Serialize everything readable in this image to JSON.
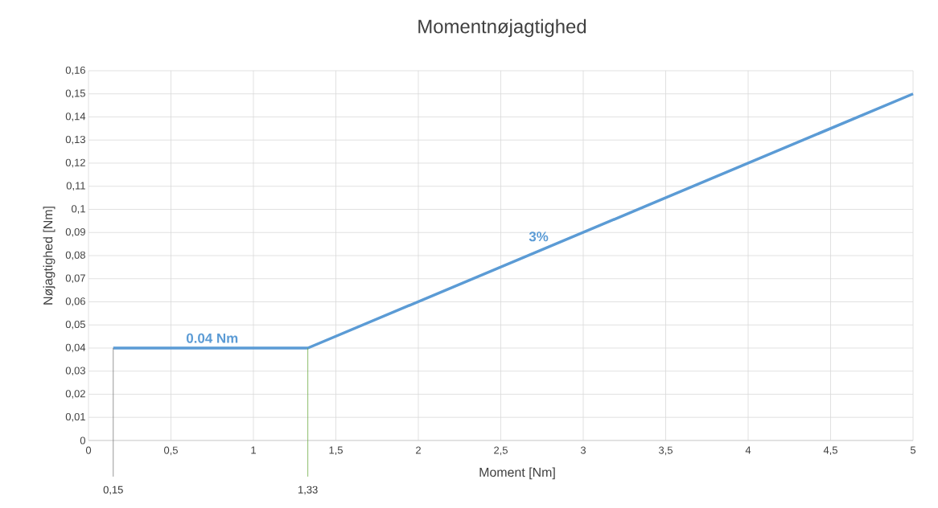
{
  "chart_data": {
    "type": "line",
    "title": "Momentnøjagtighed",
    "xlabel": "Moment [Nm]",
    "ylabel": "Nøjagtighed [Nm]",
    "x": [
      0.15,
      1.33,
      5
    ],
    "series": [
      {
        "color": "#5b9bd5",
        "values": [
          0.04,
          0.04,
          0.15
        ]
      }
    ],
    "xlim": [
      0,
      5
    ],
    "ylim": [
      0,
      0.16
    ],
    "xticks": [
      0,
      {
        "value": 0.5,
        "label": "0,5"
      },
      1,
      {
        "value": 1.5,
        "label": "1,5"
      },
      2,
      {
        "value": 2.5,
        "label": "2,5"
      },
      3,
      {
        "value": 3.5,
        "label": "3,5"
      },
      4,
      {
        "value": 4.5,
        "label": "4,5"
      },
      5
    ],
    "yticks": [
      0,
      {
        "value": 0.01,
        "label": "0,01"
      },
      {
        "value": 0.02,
        "label": "0,02"
      },
      {
        "value": 0.03,
        "label": "0,03"
      },
      {
        "value": 0.04,
        "label": "0,04"
      },
      {
        "value": 0.05,
        "label": "0,05"
      },
      {
        "value": 0.06,
        "label": "0,06"
      },
      {
        "value": 0.07,
        "label": "0,07"
      },
      {
        "value": 0.08,
        "label": "0,08"
      },
      {
        "value": 0.09,
        "label": "0,09"
      },
      {
        "value": 0.1,
        "label": "0,1"
      },
      {
        "value": 0.11,
        "label": "0,11"
      },
      {
        "value": 0.12,
        "label": "0,12"
      },
      {
        "value": 0.13,
        "label": "0,13"
      },
      {
        "value": 0.14,
        "label": "0,14"
      },
      {
        "value": 0.15,
        "label": "0,15"
      },
      {
        "value": 0.16,
        "label": "0,16"
      }
    ],
    "grid": true,
    "marker": "none",
    "line_style": "solid",
    "ref_lines": [
      {
        "axis": "x",
        "value": 0.15,
        "label": "0,15",
        "color": "#7f7f7f"
      },
      {
        "axis": "x",
        "value": 1.33,
        "label": "1,33",
        "color": "#70ad47"
      }
    ],
    "annotations": [
      {
        "text": "0.04 Nm",
        "x": 0.75,
        "y": 0.04
      },
      {
        "text": "3%",
        "x": 2.8,
        "y": 0.084
      }
    ]
  }
}
